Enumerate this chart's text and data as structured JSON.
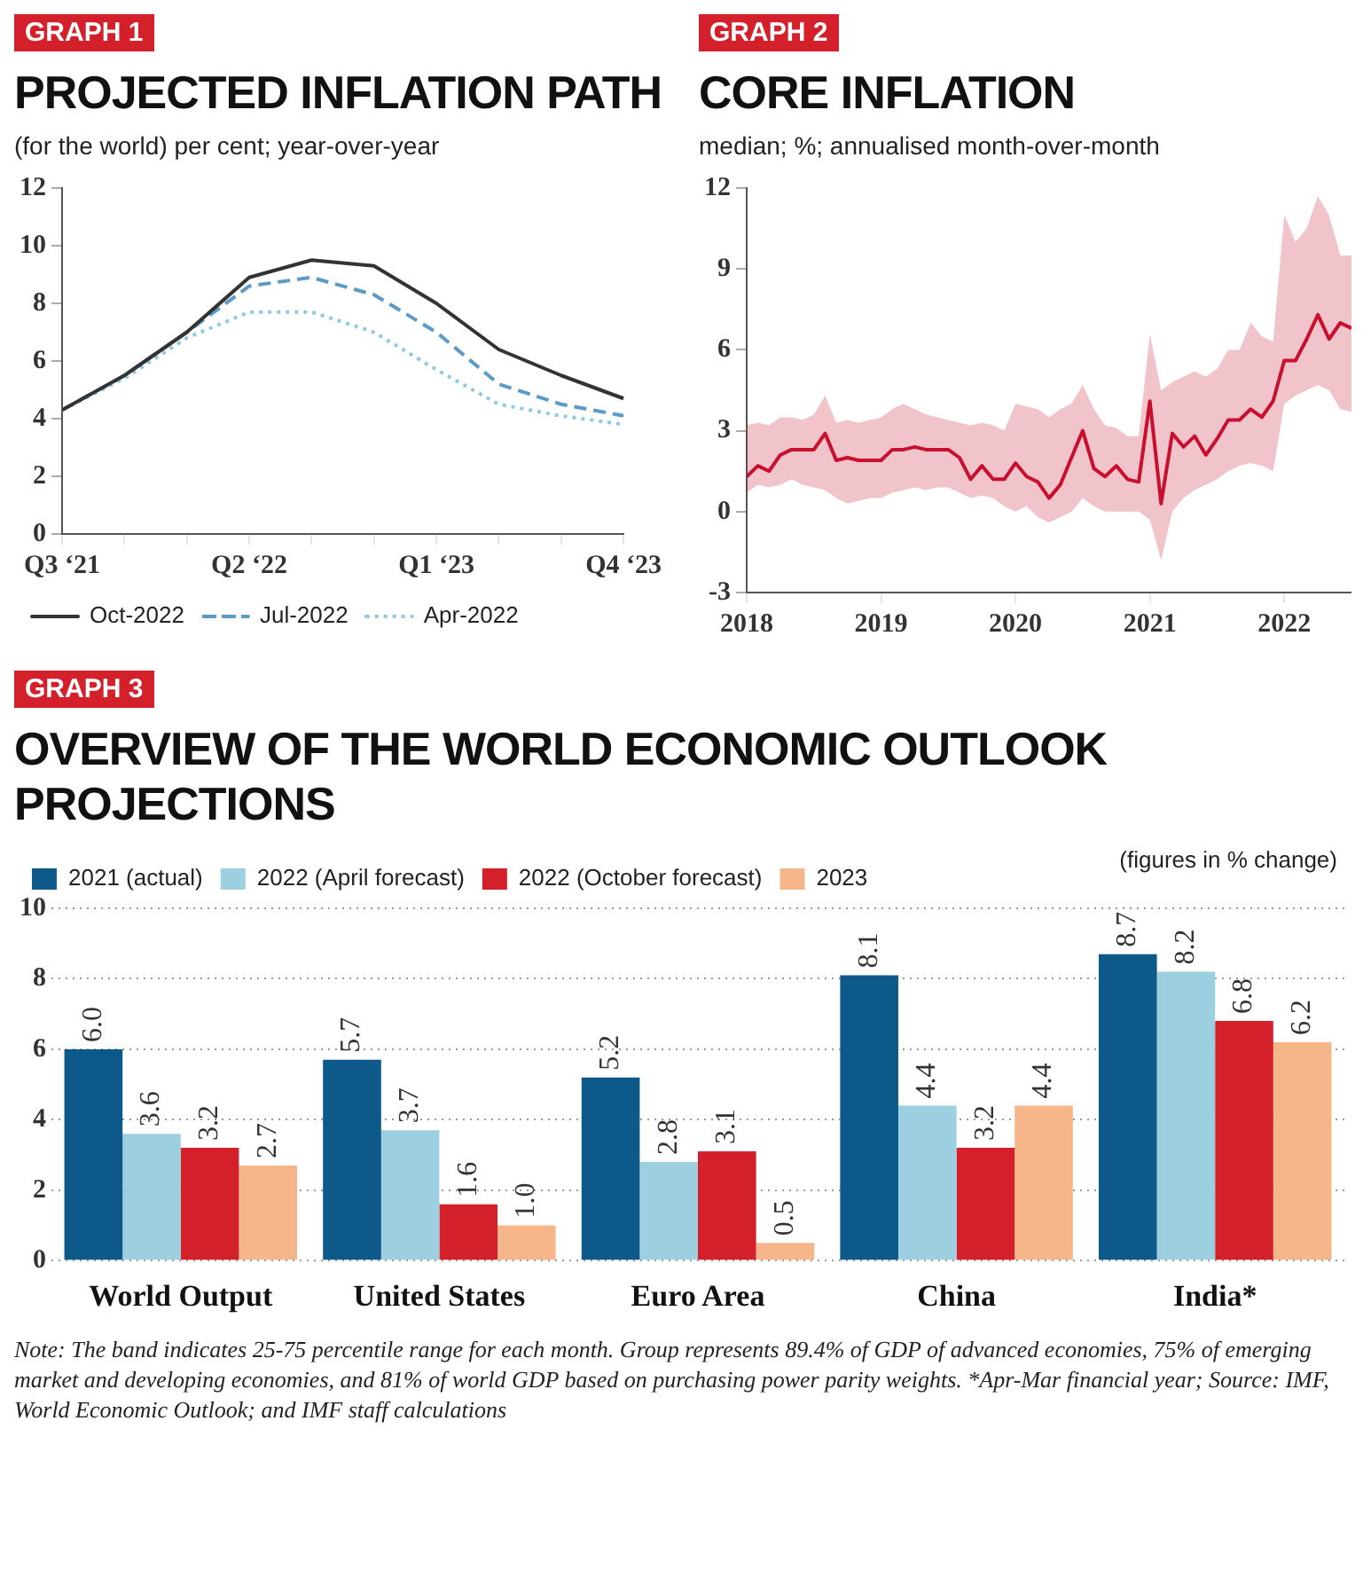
{
  "chart_data": [
    {
      "type": "line",
      "title": "PROJECTED INFLATION PATH",
      "subtitle": "(for the world) per cent; year-over-year",
      "annotations": [
        "GRAPH 1"
      ],
      "categories": [
        "Q3 ‘21",
        null,
        null,
        "Q2 ‘22",
        null,
        null,
        "Q1 ‘23",
        null,
        null,
        "Q4 ‘23"
      ],
      "series": [
        {
          "name": "Oct-2022",
          "color": "#333333",
          "line_style": "solid",
          "values": [
            4.3,
            5.5,
            7.0,
            8.9,
            9.5,
            9.3,
            8.0,
            6.4,
            5.5,
            4.7
          ]
        },
        {
          "name": "Jul-2022",
          "color": "#5b9bc8",
          "line_style": "dashed",
          "values": [
            4.3,
            5.5,
            7.0,
            8.6,
            8.9,
            8.3,
            7.0,
            5.2,
            4.5,
            4.1
          ]
        },
        {
          "name": "Apr-2022",
          "color": "#8fcbe3",
          "line_style": "dotted",
          "values": [
            4.3,
            5.4,
            6.8,
            7.7,
            7.7,
            7.0,
            5.7,
            4.5,
            4.1,
            3.8
          ]
        }
      ],
      "ylim": [
        0,
        12
      ],
      "yticks": [
        0,
        2,
        4,
        6,
        8,
        10,
        12
      ],
      "grid": false,
      "legend": "bottom left",
      "marker": "none"
    },
    {
      "type": "line",
      "title": "CORE INFLATION",
      "subtitle": "median; %; annualised month-over-month",
      "annotations": [
        "GRAPH 2"
      ],
      "x": [
        "2018-01",
        "2018-02",
        "2018-03",
        "2018-04",
        "2018-05",
        "2018-06",
        "2018-07",
        "2018-08",
        "2018-09",
        "2018-10",
        "2018-11",
        "2018-12",
        "2019-01",
        "2019-02",
        "2019-03",
        "2019-04",
        "2019-05",
        "2019-06",
        "2019-07",
        "2019-08",
        "2019-09",
        "2019-10",
        "2019-11",
        "2019-12",
        "2020-01",
        "2020-02",
        "2020-03",
        "2020-04",
        "2020-05",
        "2020-06",
        "2020-07",
        "2020-08",
        "2020-09",
        "2020-10",
        "2020-11",
        "2020-12",
        "2021-01",
        "2021-02",
        "2021-03",
        "2021-04",
        "2021-05",
        "2021-06",
        "2021-07",
        "2021-08",
        "2021-09",
        "2021-10",
        "2021-11",
        "2021-12",
        "2022-01",
        "2022-02",
        "2022-03",
        "2022-04",
        "2022-05",
        "2022-06",
        "2022-07"
      ],
      "series": [
        {
          "color": "#c8102e",
          "values": [
            1.3,
            1.7,
            1.5,
            2.1,
            2.3,
            2.3,
            2.3,
            2.9,
            1.9,
            2.0,
            1.9,
            1.9,
            1.9,
            2.3,
            2.3,
            2.4,
            2.3,
            2.3,
            2.3,
            2.0,
            1.2,
            1.7,
            1.2,
            1.2,
            1.8,
            1.3,
            1.1,
            0.5,
            1.0,
            2.0,
            3.0,
            1.6,
            1.3,
            1.7,
            1.2,
            1.1,
            4.1,
            0.3,
            2.9,
            2.4,
            2.8,
            2.1,
            2.7,
            3.4,
            3.4,
            3.8,
            3.5,
            4.1,
            5.6,
            5.6,
            6.4,
            7.3,
            6.4,
            7.0,
            6.8
          ],
          "upper": [
            3.2,
            3.3,
            3.2,
            3.5,
            3.5,
            3.4,
            3.6,
            4.3,
            3.3,
            3.4,
            3.3,
            3.4,
            3.5,
            3.8,
            4.0,
            3.8,
            3.6,
            3.5,
            3.4,
            3.3,
            3.2,
            3.3,
            3.2,
            3.0,
            4.0,
            3.9,
            3.8,
            3.5,
            3.8,
            4.0,
            4.7,
            3.8,
            3.2,
            3.1,
            2.8,
            2.8,
            6.6,
            4.5,
            4.8,
            5.0,
            5.2,
            5.0,
            5.3,
            6.0,
            6.0,
            7.0,
            6.5,
            6.3,
            11.0,
            10.0,
            10.5,
            11.7,
            11.0,
            9.5,
            9.5
          ],
          "lower": [
            0.7,
            1.0,
            0.9,
            1.0,
            1.2,
            1.0,
            0.9,
            0.8,
            0.5,
            0.3,
            0.4,
            0.5,
            0.5,
            0.7,
            0.8,
            0.9,
            0.8,
            0.9,
            0.9,
            0.7,
            0.5,
            0.6,
            0.5,
            0.2,
            0.0,
            0.2,
            -0.2,
            -0.4,
            -0.2,
            0.0,
            0.5,
            0.2,
            0.0,
            0.0,
            0.0,
            0.0,
            -0.3,
            -1.8,
            0.0,
            0.5,
            0.8,
            1.0,
            1.2,
            1.5,
            1.7,
            1.8,
            1.7,
            1.5,
            4.0,
            4.3,
            4.5,
            4.7,
            4.5,
            3.8,
            3.7
          ]
        }
      ],
      "xlim": [
        "2018-01",
        "2022-07"
      ],
      "xticks": [
        "2018",
        "2019",
        "2020",
        "2021",
        "2022"
      ],
      "ylim": [
        -3,
        12
      ],
      "yticks": [
        -3,
        0,
        3,
        6,
        9,
        12
      ],
      "grid": false,
      "legend": false,
      "marker": "none"
    },
    {
      "type": "bar",
      "title": "OVERVIEW OF THE WORLD ECONOMIC OUTLOOK PROJECTIONS",
      "annotations": [
        "GRAPH 3",
        "(figures in % change)",
        "Note: The band indicates 25-75 percentile range for each month. Group represents 89.4% of GDP of advanced economies, 75% of emerging market and developing economies, and 81% of world GDP based on purchasing power parity weights. *Apr-Mar financial year; Source: IMF, World Economic Outlook; and IMF staff calculations"
      ],
      "categories": [
        "World Output",
        "United States",
        "Euro Area",
        "China",
        "India*"
      ],
      "series": [
        {
          "name": "2021 (actual)",
          "color": "#0d5a8a",
          "values": [
            6.0,
            5.7,
            5.2,
            8.1,
            8.7
          ],
          "value_labels": [
            "6.0",
            "5.7",
            "5.2",
            "8.1",
            "8.7"
          ]
        },
        {
          "name": "2022 (April forecast)",
          "color": "#9ccfe0",
          "values": [
            3.6,
            3.7,
            2.8,
            4.4,
            8.2
          ],
          "value_labels": [
            "3.6",
            "3.7",
            "2.8",
            "4.4",
            "8.2"
          ]
        },
        {
          "name": "2022 (October forecast)",
          "color": "#d3202a",
          "values": [
            3.2,
            1.6,
            3.1,
            3.2,
            6.8
          ],
          "value_labels": [
            "3.2",
            "1.6",
            "3.1",
            "3.2",
            "6.8"
          ]
        },
        {
          "name": "2023",
          "color": "#f7b58a",
          "values": [
            2.7,
            1.0,
            0.5,
            4.4,
            6.2
          ],
          "value_labels": [
            "2.7",
            "1.0",
            "0.5",
            "4.4",
            "6.2"
          ]
        }
      ],
      "ylim": [
        0,
        10
      ],
      "yticks": [
        0,
        2,
        4,
        6,
        8,
        10
      ],
      "grid": "y",
      "legend": "top left"
    }
  ]
}
